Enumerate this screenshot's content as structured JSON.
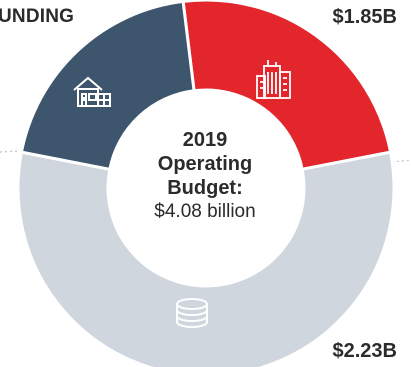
{
  "labels": {
    "top_left": "UNDING",
    "top_right": "$1.85B",
    "bottom_right": "$2.23B"
  },
  "center": {
    "line1": "2019",
    "line2": "Operating",
    "line3": "Budget:",
    "line4": "$4.08 billion"
  },
  "chart_data": {
    "type": "pie",
    "style": "donut",
    "total_text": "$4.08 billion",
    "slices": [
      {
        "label": "$1.85B",
        "value": 1.85,
        "color": "#e2262b",
        "icon": "buildings-icon"
      },
      {
        "label": "$2.23B",
        "value": 2.23,
        "color": "#cfd6de",
        "icon": "coins-icon",
        "note": "portion visible at right/bottom"
      },
      {
        "label": "UNDING",
        "value": null,
        "color": "#3d566e",
        "icon": "house-icon",
        "note": "label partially cut off at image edge"
      }
    ]
  }
}
